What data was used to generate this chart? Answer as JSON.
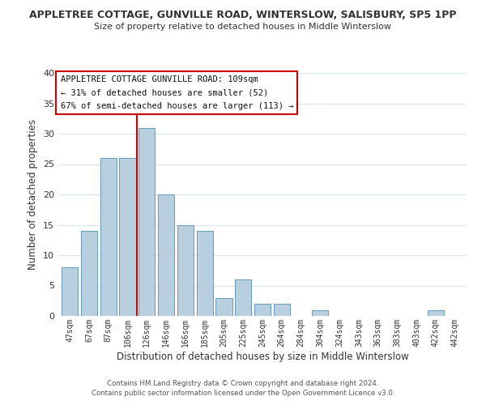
{
  "title_line1": "APPLETREE COTTAGE, GUNVILLE ROAD, WINTERSLOW, SALISBURY, SP5 1PP",
  "title_line2": "Size of property relative to detached houses in Middle Winterslow",
  "xlabel": "Distribution of detached houses by size in Middle Winterslow",
  "ylabel": "Number of detached properties",
  "bar_labels": [
    "47sqm",
    "67sqm",
    "87sqm",
    "106sqm",
    "126sqm",
    "146sqm",
    "166sqm",
    "185sqm",
    "205sqm",
    "225sqm",
    "245sqm",
    "264sqm",
    "284sqm",
    "304sqm",
    "324sqm",
    "343sqm",
    "363sqm",
    "383sqm",
    "403sqm",
    "422sqm",
    "442sqm"
  ],
  "bar_values": [
    8,
    14,
    26,
    26,
    31,
    20,
    15,
    14,
    3,
    6,
    2,
    2,
    0,
    1,
    0,
    0,
    0,
    0,
    0,
    1,
    0
  ],
  "bar_color": "#b8cfe0",
  "bar_edge_color": "#6699bb",
  "vline_x_index": 3.5,
  "vline_color": "#cc0000",
  "annotation_title": "APPLETREE COTTAGE GUNVILLE ROAD: 109sqm",
  "annotation_line1": "← 31% of detached houses are smaller (52)",
  "annotation_line2": "67% of semi-detached houses are larger (113) →",
  "annotation_box_facecolor": "#ffffff",
  "annotation_box_edgecolor": "#cc0000",
  "ylim": [
    0,
    40
  ],
  "yticks": [
    0,
    5,
    10,
    15,
    20,
    25,
    30,
    35,
    40
  ],
  "footer_line1": "Contains HM Land Registry data © Crown copyright and database right 2024.",
  "footer_line2": "Contains public sector information licensed under the Open Government Licence v3.0.",
  "background_color": "#ffffff",
  "grid_color": "#d8e4f0"
}
